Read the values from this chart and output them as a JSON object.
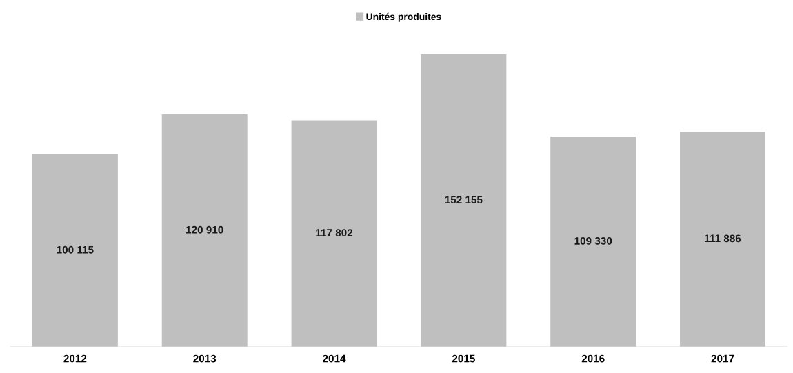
{
  "chart_data": {
    "type": "bar",
    "categories": [
      "2012",
      "2013",
      "2014",
      "2015",
      "2016",
      "2017"
    ],
    "series": [
      {
        "name": "Unités produites",
        "color": "#bfbfbf",
        "values": [
          100115,
          120910,
          117802,
          152155,
          109330,
          111886
        ],
        "value_labels": [
          "100 115",
          "120 910",
          "117 802",
          "152 155",
          "109 330",
          "111 886"
        ]
      }
    ],
    "legend": "top",
    "grid": false
  }
}
